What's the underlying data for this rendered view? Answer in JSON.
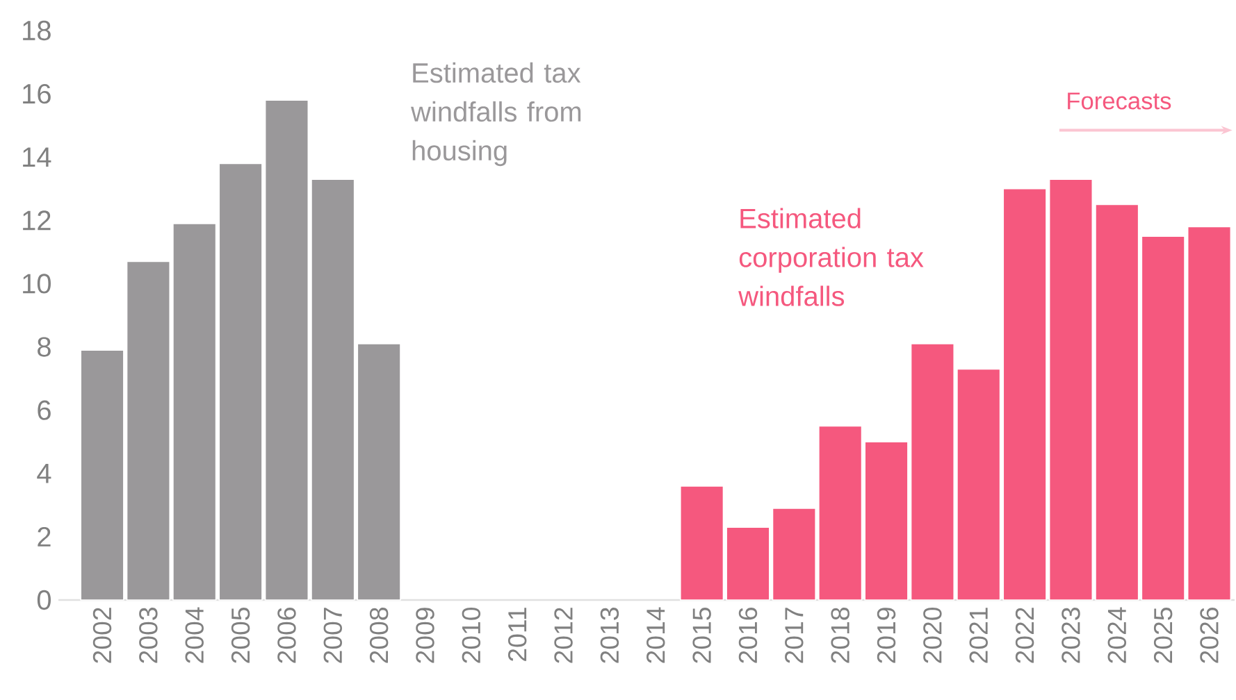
{
  "chart_data": {
    "type": "bar",
    "categories": [
      "2002",
      "2003",
      "2004",
      "2005",
      "2006",
      "2007",
      "2008",
      "2009",
      "2010",
      "2011",
      "2012",
      "2013",
      "2014",
      "2015",
      "2016",
      "2017",
      "2018",
      "2019",
      "2020",
      "2021",
      "2022",
      "2023",
      "2024",
      "2025",
      "2026"
    ],
    "series": [
      {
        "name": "Estimated tax windfalls from housing",
        "color": "#9a989a",
        "values": [
          7.9,
          10.7,
          11.9,
          13.8,
          15.8,
          13.3,
          8.1,
          null,
          null,
          null,
          null,
          null,
          null,
          null,
          null,
          null,
          null,
          null,
          null,
          null,
          null,
          null,
          null,
          null,
          null
        ]
      },
      {
        "name": "Estimated corporation tax windfalls",
        "color": "#f5587e",
        "values": [
          null,
          null,
          null,
          null,
          null,
          null,
          null,
          null,
          null,
          null,
          null,
          null,
          null,
          3.6,
          2.3,
          2.9,
          5.5,
          5.0,
          8.1,
          7.3,
          13.0,
          null,
          null,
          null,
          null
        ]
      },
      {
        "name": "Forecasts",
        "color": "#f5587e",
        "values": [
          null,
          null,
          null,
          null,
          null,
          null,
          null,
          null,
          null,
          null,
          null,
          null,
          null,
          null,
          null,
          null,
          null,
          null,
          null,
          null,
          null,
          13.3,
          12.5,
          11.5,
          11.8
        ]
      }
    ],
    "ylim": [
      0,
      18
    ],
    "yticks": [
      0,
      2,
      4,
      6,
      8,
      10,
      12,
      14,
      16,
      18
    ],
    "grid": false
  }
}
